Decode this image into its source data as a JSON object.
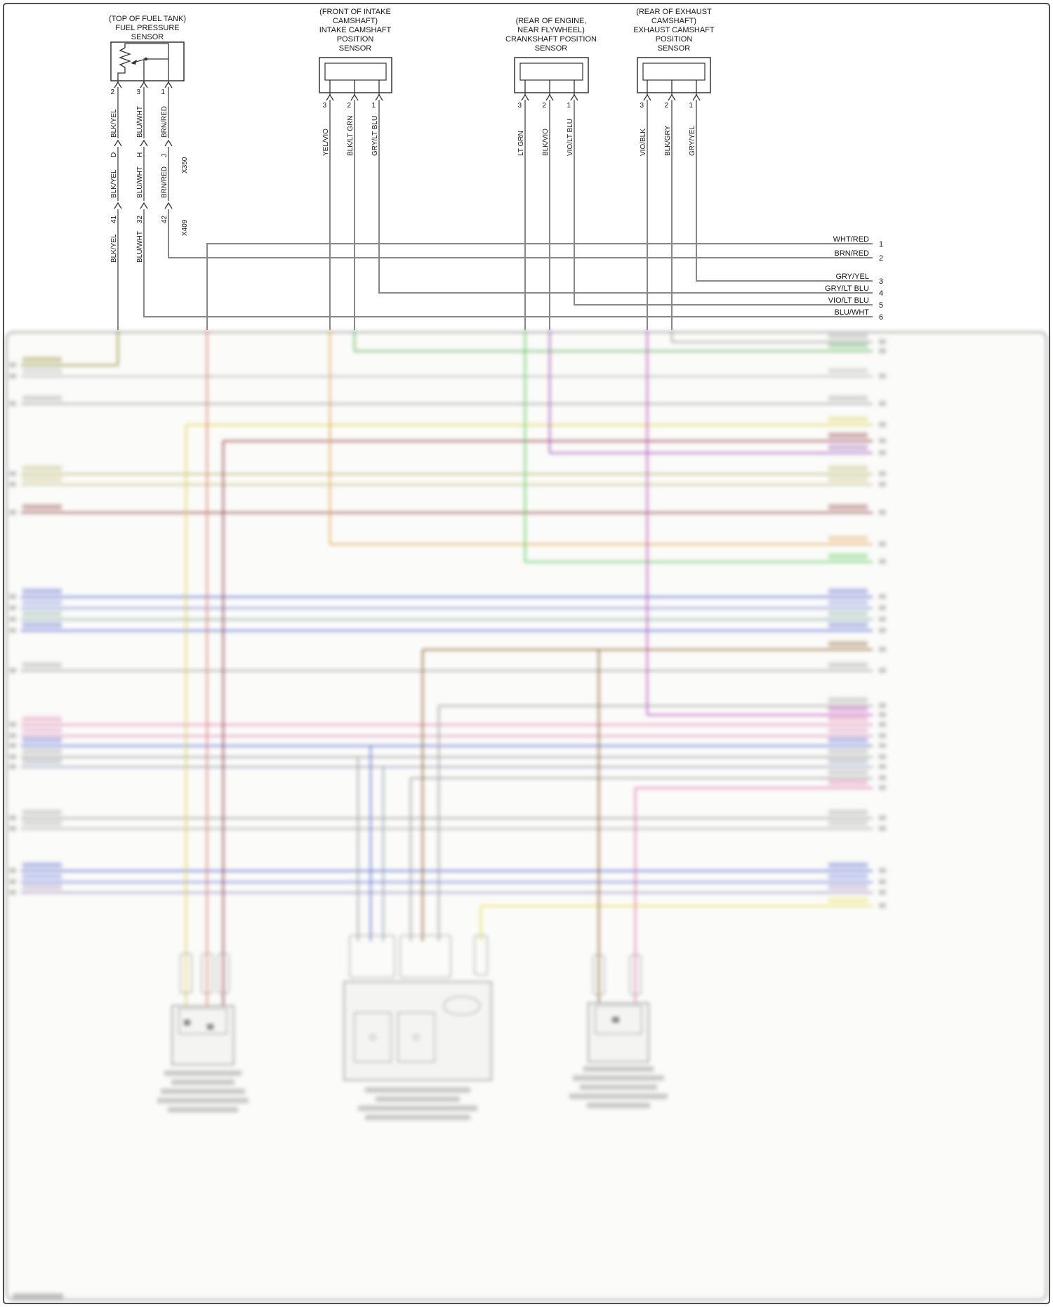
{
  "sensors": [
    {
      "name": "fuel-pressure-sensor",
      "header": [
        "(TOP OF FUEL TANK)",
        "FUEL PRESSURE",
        "SENSOR"
      ],
      "pins": [
        {
          "num": "2",
          "wire": "BLK/YEL"
        },
        {
          "num": "3",
          "wire": "BLU/WHT"
        },
        {
          "num": "1",
          "wire": "BRN/RED"
        }
      ]
    },
    {
      "name": "intake-camshaft-position-sensor",
      "header": [
        "(FRONT OF INTAKE",
        "CAMSHAFT)",
        "INTAKE CAMSHAFT",
        "POSITION",
        "SENSOR"
      ],
      "pins": [
        {
          "num": "3",
          "wire": "YEL/VIO"
        },
        {
          "num": "2",
          "wire": "BLK/LT GRN"
        },
        {
          "num": "1",
          "wire": "GRY/LT BLU"
        }
      ]
    },
    {
      "name": "crankshaft-position-sensor",
      "header": [
        "(REAR OF ENGINE,",
        "NEAR FLYWHEEL)",
        "CRANKSHAFT POSITION",
        "SENSOR"
      ],
      "pins": [
        {
          "num": "3",
          "wire": "LT GRN"
        },
        {
          "num": "2",
          "wire": "BLK/VIO"
        },
        {
          "num": "1",
          "wire": "VIO/LT BLU"
        }
      ]
    },
    {
      "name": "exhaust-camshaft-position-sensor",
      "header": [
        "(REAR OF EXHAUST",
        "CAMSHAFT)",
        "EXHAUST CAMSHAFT",
        "POSITION",
        "SENSOR"
      ],
      "pins": [
        {
          "num": "3",
          "wire": "VIO/BLK"
        },
        {
          "num": "2",
          "wire": "BLK/GRY"
        },
        {
          "num": "1",
          "wire": "GRY/YEL"
        }
      ]
    }
  ],
  "x350": {
    "id": "X350",
    "cols": [
      {
        "pin": "D",
        "wire": "BLK/YEL"
      },
      {
        "pin": "H",
        "wire": "BLU/WHT"
      },
      {
        "pin": "J",
        "wire": "BRN/RED"
      }
    ]
  },
  "x409": {
    "id": "X409",
    "cols": [
      {
        "pin": "41",
        "wire": "BLK/YEL"
      },
      {
        "pin": "32",
        "wire": "BLU/WHT"
      },
      {
        "pin": "42",
        "wire": ""
      }
    ]
  },
  "right_bus": [
    {
      "num": "1",
      "label": "WHT/RED"
    },
    {
      "num": "2",
      "label": "BRN/RED"
    },
    {
      "num": "3",
      "label": "GRY/YEL"
    },
    {
      "num": "4",
      "label": "GRY/LT BLU"
    },
    {
      "num": "5",
      "label": "VIO/LT BLU"
    },
    {
      "num": "6",
      "label": "BLU/WHT"
    }
  ],
  "wire_colors": {
    "BLK/YEL": "#8f8a2a",
    "BLU/WHT": "#2f3fae",
    "BRN/RED": "#8a3a12",
    "WHT/RED": "#e0776b",
    "YEL/VIO": "#e2a24a",
    "BLK/LT GRN": "#57b257",
    "GRY/LT BLU": "#62bfc4",
    "LT GRN": "#4ecb4e",
    "BLK/VIO": "#9a50b5",
    "VIO/LT BLU": "#a03ed6",
    "VIO/BLK": "#bc46bc",
    "BLK/GRY": "#8f8f8f",
    "GRY/YEL": "#d8c83e"
  }
}
